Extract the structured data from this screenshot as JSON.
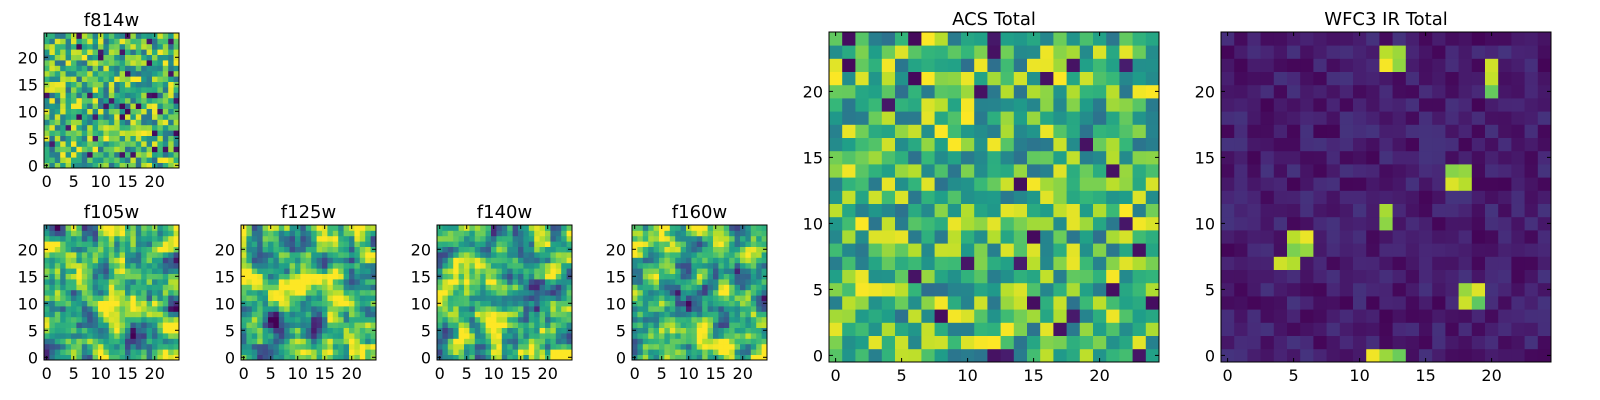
{
  "chart_data": [
    {
      "type": "heatmap",
      "title": "f814w",
      "colormap": "viridis",
      "grid_size": [
        25,
        25
      ],
      "xticks": [
        "0",
        "5",
        "10",
        "15",
        "20"
      ],
      "yticks": [
        "0",
        "5",
        "10",
        "15",
        "20"
      ],
      "xlim": [
        -0.5,
        24.5
      ],
      "ylim": [
        -0.5,
        24.5
      ],
      "pattern": "uniform random noise, mostly mid-to-high values with a few dark pixels"
    },
    {
      "type": "heatmap",
      "title": "f105w",
      "colormap": "viridis",
      "grid_size": [
        25,
        25
      ],
      "xticks": [
        "0",
        "5",
        "10",
        "15",
        "20"
      ],
      "yticks": [
        "0",
        "5",
        "10",
        "15",
        "20"
      ],
      "xlim": [
        -0.5,
        24.5
      ],
      "ylim": [
        -0.5,
        24.5
      ],
      "pattern": "smoothed noise, mostly mid-to-high values"
    },
    {
      "type": "heatmap",
      "title": "f125w",
      "colormap": "viridis",
      "grid_size": [
        25,
        25
      ],
      "xticks": [
        "0",
        "5",
        "10",
        "15",
        "20"
      ],
      "yticks": [
        "0",
        "5",
        "10",
        "15",
        "20"
      ],
      "xlim": [
        -0.5,
        24.5
      ],
      "ylim": [
        -0.5,
        24.5
      ],
      "pattern": "smoothed noise, mostly mid-to-high values"
    },
    {
      "type": "heatmap",
      "title": "f140w",
      "colormap": "viridis",
      "grid_size": [
        25,
        25
      ],
      "xticks": [
        "0",
        "5",
        "10",
        "15",
        "20"
      ],
      "yticks": [
        "0",
        "5",
        "10",
        "15",
        "20"
      ],
      "xlim": [
        -0.5,
        24.5
      ],
      "ylim": [
        -0.5,
        24.5
      ],
      "pattern": "smoothed noise, mostly mid-to-high values"
    },
    {
      "type": "heatmap",
      "title": "f160w",
      "colormap": "viridis",
      "grid_size": [
        25,
        25
      ],
      "xticks": [
        "0",
        "5",
        "10",
        "15",
        "20"
      ],
      "yticks": [
        "0",
        "5",
        "10",
        "15",
        "20"
      ],
      "xlim": [
        -0.5,
        24.5
      ],
      "ylim": [
        -0.5,
        24.5
      ],
      "pattern": "smoothed noise, mostly mid-to-high values"
    },
    {
      "type": "heatmap",
      "title": "ACS Total",
      "colormap": "viridis",
      "grid_size": [
        25,
        25
      ],
      "xticks": [
        "0",
        "5",
        "10",
        "15",
        "20"
      ],
      "yticks": [
        "0",
        "5",
        "10",
        "15",
        "20"
      ],
      "xlim": [
        -0.5,
        24.5
      ],
      "ylim": [
        -0.5,
        24.5
      ],
      "pattern": "uniform random noise, mostly mid-to-high values with a few dark pixels"
    },
    {
      "type": "heatmap",
      "title": "WFC3 IR Total",
      "colormap": "viridis",
      "grid_size": [
        25,
        25
      ],
      "xticks": [
        "0",
        "5",
        "10",
        "15",
        "20"
      ],
      "yticks": [
        "0",
        "5",
        "10",
        "15",
        "20"
      ],
      "xlim": [
        -0.5,
        24.5
      ],
      "ylim": [
        -0.5,
        24.5
      ],
      "pattern": "low dark background with a few bright compact sources",
      "bright_sources": [
        {
          "x": 12,
          "y": 22,
          "w": 2,
          "h": 2
        },
        {
          "x": 20,
          "y": 20.5,
          "w": 1,
          "h": 2
        },
        {
          "x": 17,
          "y": 13,
          "w": 2,
          "h": 2
        },
        {
          "x": 12,
          "y": 10.5,
          "w": 1,
          "h": 1.5
        },
        {
          "x": 5,
          "y": 8,
          "w": 2,
          "h": 2
        },
        {
          "x": 4,
          "y": 7,
          "w": 2,
          "h": 1
        },
        {
          "x": 18,
          "y": 4,
          "w": 2,
          "h": 2
        },
        {
          "x": 11,
          "y": 0,
          "w": 3,
          "h": 1
        }
      ]
    }
  ]
}
